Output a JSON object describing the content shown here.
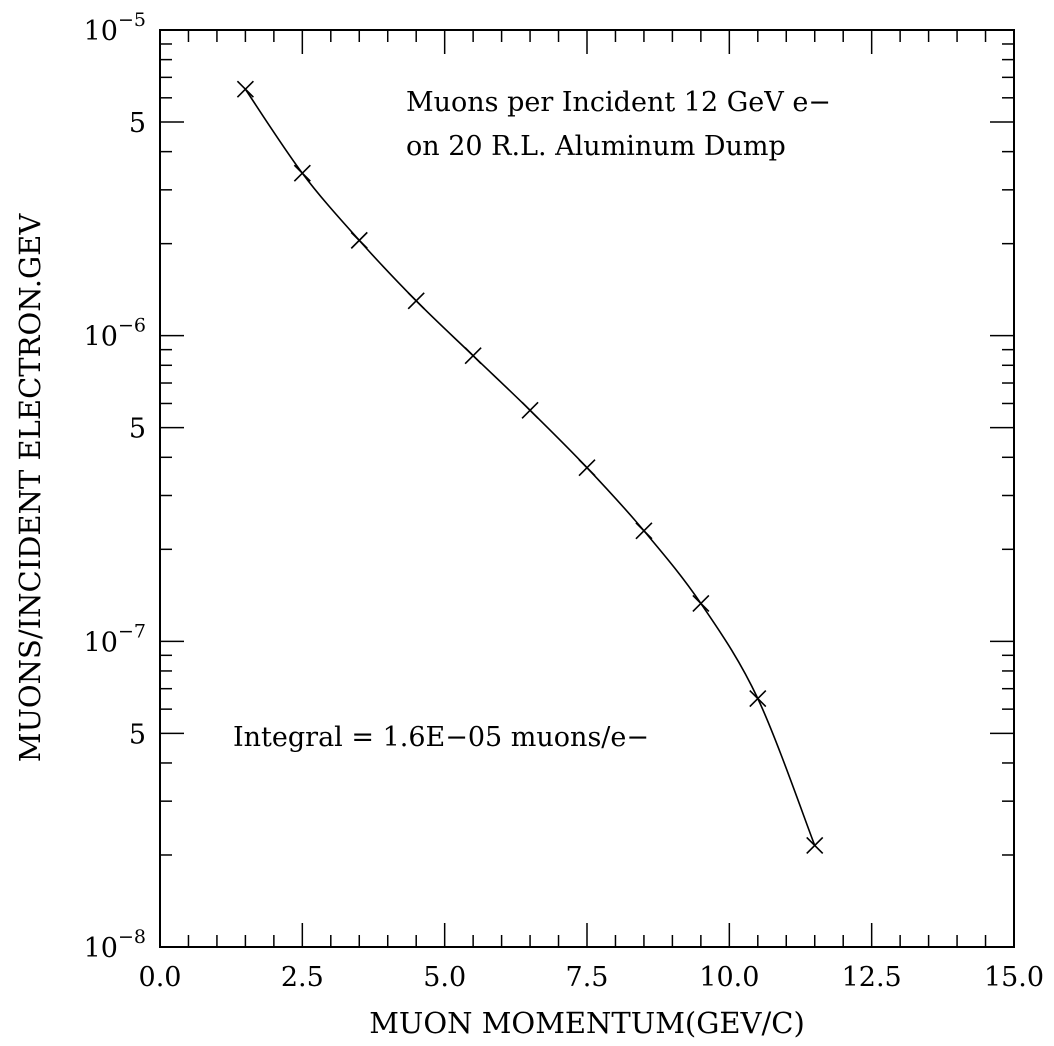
{
  "chart_data": {
    "type": "line",
    "title": "",
    "xlabel": "MUON MOMENTUM(GEV/C)",
    "ylabel": "MUONS/INCIDENT ELECTRON.GEV",
    "xscale": "linear",
    "yscale": "log",
    "xlim": [
      0.0,
      15.0
    ],
    "ylim": [
      1e-08,
      1e-05
    ],
    "grid": false,
    "legend": "none",
    "x_tick_labels": [
      "0.0",
      "2.5",
      "5.0",
      "7.5",
      "10.0",
      "12.5",
      "15.0"
    ],
    "y_tick_labels": [
      {
        "value": 1e-05,
        "base": "10",
        "exp": "−5"
      },
      {
        "value": 5e-06,
        "base": "5",
        "exp": ""
      },
      {
        "value": 1e-06,
        "base": "10",
        "exp": "−6"
      },
      {
        "value": 5e-07,
        "base": "5",
        "exp": ""
      },
      {
        "value": 1e-07,
        "base": "10",
        "exp": "−7"
      },
      {
        "value": 5e-08,
        "base": "5",
        "exp": ""
      },
      {
        "value": 1e-08,
        "base": "10",
        "exp": "−8"
      }
    ],
    "annotations": {
      "line1": "Muons per Incident 12 GeV e−",
      "line2": "on 20 R.L. Aluminum Dump",
      "integral": "Integral = 1.6E−05 muons/e−"
    },
    "series": [
      {
        "marker": "x",
        "x": [
          1.5,
          2.5,
          3.5,
          4.5,
          5.5,
          6.5,
          7.5,
          8.5,
          9.5,
          10.5,
          11.5
        ],
        "y": [
          6.4e-06,
          3.4e-06,
          2.05e-06,
          1.3e-06,
          8.6e-07,
          5.7e-07,
          3.7e-07,
          2.3e-07,
          1.33e-07,
          6.5e-08,
          2.15e-08
        ]
      }
    ],
    "colors": {
      "line": "#000000",
      "marker": "#000000",
      "background": "#ffffff"
    }
  }
}
